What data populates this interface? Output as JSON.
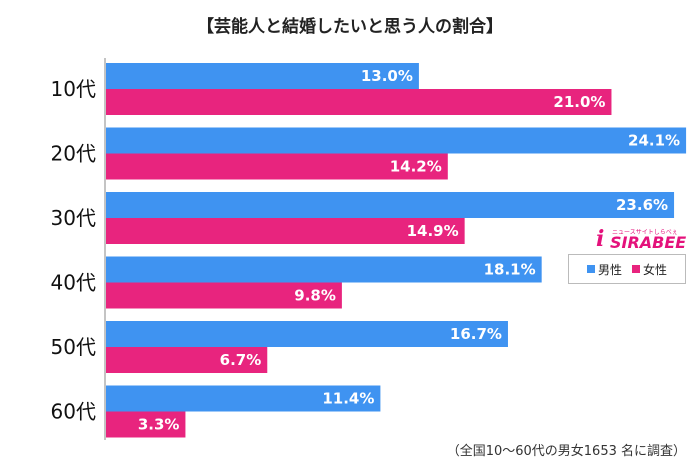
{
  "colors": {
    "male": "#3f93f1",
    "female": "#e8247e"
  },
  "legend": {
    "male": "男性",
    "female": "女性"
  },
  "logo": {
    "text": "SIRABEE",
    "subtext": "ニュースサイトしらべぇ"
  },
  "footnote": "（全国10～60代の男女1653 名に調査）",
  "chart_data": {
    "type": "bar",
    "orientation": "horizontal",
    "title": "【芸能人と結婚したいと思う人の割合】",
    "categories": [
      "10代",
      "20代",
      "30代",
      "40代",
      "50代",
      "60代"
    ],
    "series": [
      {
        "name": "男性",
        "values": [
          13.0,
          24.1,
          23.6,
          18.1,
          16.7,
          11.4
        ]
      },
      {
        "name": "女性",
        "values": [
          21.0,
          14.2,
          14.9,
          9.8,
          6.7,
          3.3
        ]
      }
    ],
    "unit": "%",
    "legend_position": "right",
    "grid": false
  }
}
